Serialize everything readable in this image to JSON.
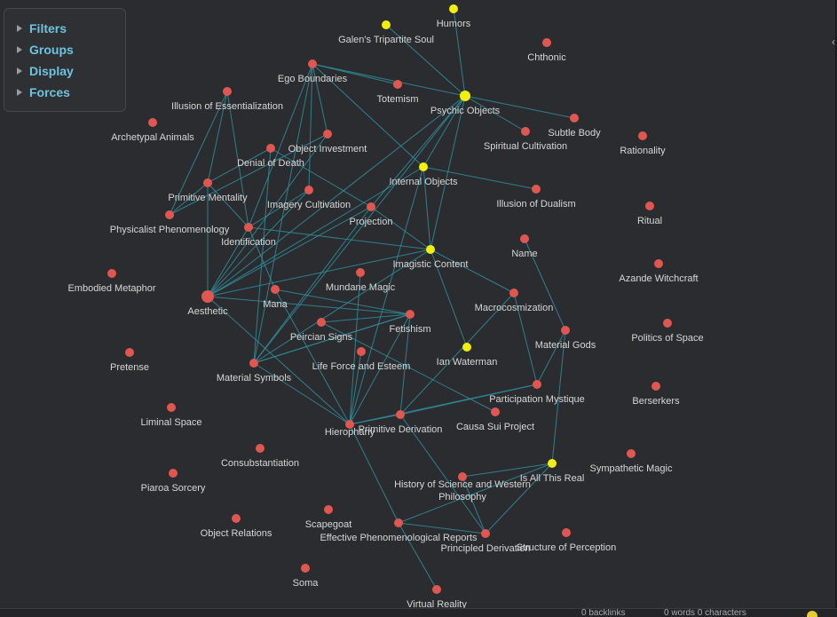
{
  "colors": {
    "background": "#2b2c2f",
    "node_red": "#e05752",
    "node_yellow": "#f2f00a",
    "edge": "#2f8f9d",
    "panel_text": "#6ec3df",
    "label": "#d7d7d7"
  },
  "panel": {
    "items": [
      {
        "label": "Filters"
      },
      {
        "label": "Groups"
      },
      {
        "label": "Display"
      },
      {
        "label": "Forces"
      }
    ]
  },
  "graph": {
    "nodes": [
      {
        "label": "Humors",
        "color": "yellow"
      },
      {
        "label": "Galen's Tripartite Soul",
        "color": "yellow"
      },
      {
        "label": "Chthonic",
        "color": "red"
      },
      {
        "label": "Ego Boundaries",
        "color": "red"
      },
      {
        "label": "Totemism",
        "color": "red"
      },
      {
        "label": "Psychic Objects",
        "color": "yellow"
      },
      {
        "label": "Illusion of Essentialization",
        "color": "red"
      },
      {
        "label": "Subtle Body",
        "color": "red"
      },
      {
        "label": "Archetypal Animals",
        "color": "red"
      },
      {
        "label": "Object Investment",
        "color": "red"
      },
      {
        "label": "Spiritual Cultivation",
        "color": "red"
      },
      {
        "label": "Rationality",
        "color": "red"
      },
      {
        "label": "Denial of Death",
        "color": "red"
      },
      {
        "label": "Internal Objects",
        "color": "yellow"
      },
      {
        "label": "Primitive Mentality",
        "color": "red"
      },
      {
        "label": "Imagery Cultivation",
        "color": "red"
      },
      {
        "label": "Illusion of Dualism",
        "color": "red"
      },
      {
        "label": "Projection",
        "color": "red"
      },
      {
        "label": "Ritual",
        "color": "red"
      },
      {
        "label": "Physicalist Phenomenology",
        "color": "red"
      },
      {
        "label": "Identification",
        "color": "red"
      },
      {
        "label": "Name",
        "color": "red"
      },
      {
        "label": "Imagistic Content",
        "color": "yellow"
      },
      {
        "label": "Azande Witchcraft",
        "color": "red"
      },
      {
        "label": "Embodied Metaphor",
        "color": "red"
      },
      {
        "label": "Mundane Magic",
        "color": "red"
      },
      {
        "label": "Aesthetic",
        "color": "red"
      },
      {
        "label": "Mana",
        "color": "red"
      },
      {
        "label": "Macrocosmization",
        "color": "red"
      },
      {
        "label": "Peircian Signs",
        "color": "red"
      },
      {
        "label": "Fetishism",
        "color": "red"
      },
      {
        "label": "Politics of Space",
        "color": "red"
      },
      {
        "label": "Material Gods",
        "color": "red"
      },
      {
        "label": "Ian Waterman",
        "color": "yellow"
      },
      {
        "label": "Pretense",
        "color": "red"
      },
      {
        "label": "Life Force and Esteem",
        "color": "red"
      },
      {
        "label": "Material Symbols",
        "color": "red"
      },
      {
        "label": "Participation Mystique",
        "color": "red"
      },
      {
        "label": "Berserkers",
        "color": "red"
      },
      {
        "label": "Liminal Space",
        "color": "red"
      },
      {
        "label": "Causa Sui Project",
        "color": "red"
      },
      {
        "label": "Primitive Derivation",
        "color": "red"
      },
      {
        "label": "Hierophany",
        "color": "red"
      },
      {
        "label": "Consubstantiation",
        "color": "red"
      },
      {
        "label": "Sympathetic Magic",
        "color": "red"
      },
      {
        "label": "Is All This Real",
        "color": "yellow"
      },
      {
        "label": "Piaroa Sorcery",
        "color": "red"
      },
      {
        "label": "History of Science and Western Philosophy",
        "color": "red"
      },
      {
        "label": "Scapegoat",
        "color": "red"
      },
      {
        "label": "Object Relations",
        "color": "red"
      },
      {
        "label": "Effective Phenomenological Reports",
        "color": "red"
      },
      {
        "label": "Structure of Perception",
        "color": "red"
      },
      {
        "label": "Principled Derivation",
        "color": "red"
      },
      {
        "label": "Soma",
        "color": "red"
      },
      {
        "label": "Virtual Reality",
        "color": "red"
      }
    ]
  },
  "status": {
    "backlinks": "0 backlinks",
    "counts": "0 words 0 characters"
  }
}
